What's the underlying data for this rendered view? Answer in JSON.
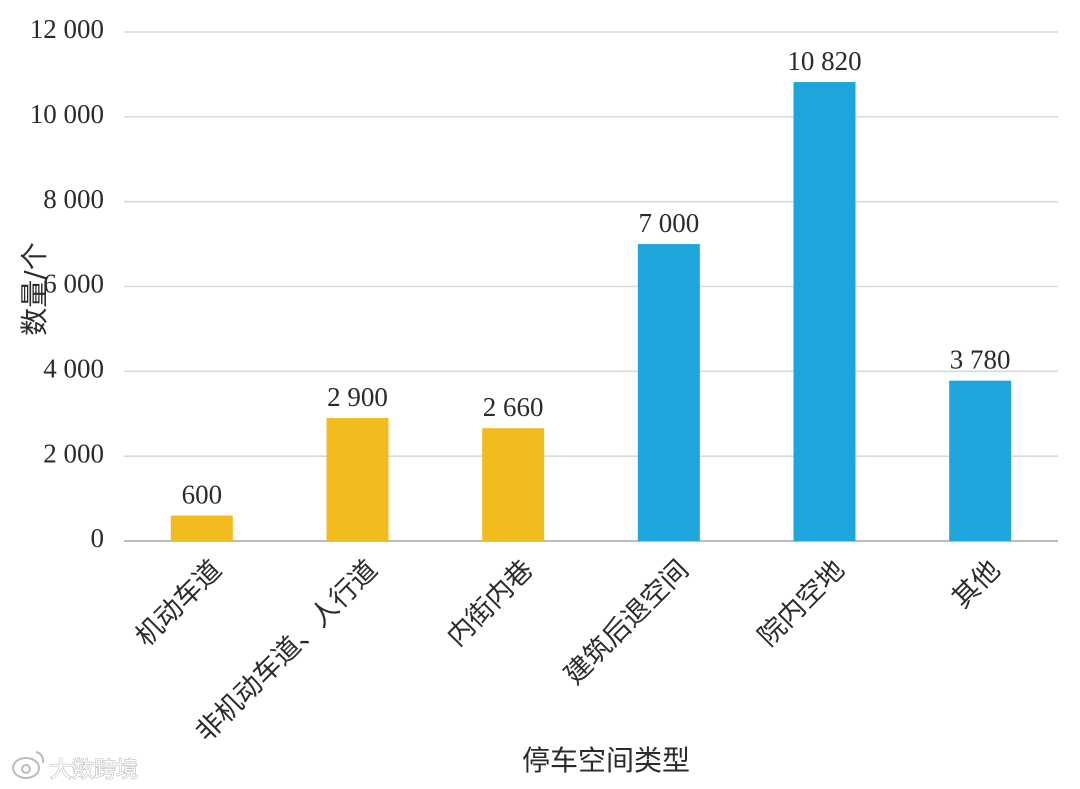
{
  "chart_data": {
    "type": "bar",
    "title": "",
    "xlabel": "停车空间类型",
    "ylabel": "数量/个",
    "categories": [
      "机动车道",
      "非机动车道、人行道",
      "内街内巷",
      "建筑后退空间",
      "院内空地",
      "其他"
    ],
    "values": [
      600,
      2900,
      2660,
      7000,
      10820,
      3780
    ],
    "value_labels": [
      "600",
      "2 900",
      "2 660",
      "7 000",
      "10 820",
      "3 780"
    ],
    "bar_colors": [
      "#f2bb1f",
      "#f2bb1f",
      "#f2bb1f",
      "#1ea5dc",
      "#1ea5dc",
      "#1ea5dc"
    ],
    "ylim": [
      0,
      12000
    ],
    "yticks": [
      0,
      2000,
      4000,
      6000,
      8000,
      10000,
      12000
    ],
    "ytick_labels": [
      "0",
      "2 000",
      "4 000",
      "6 000",
      "8 000",
      "10 000",
      "12 000"
    ],
    "grid": true,
    "legend": "none"
  },
  "watermark": {
    "text": "大数跨境",
    "icon": "weibo-icon"
  }
}
